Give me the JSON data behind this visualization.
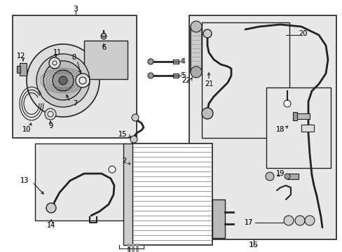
{
  "bg_color": "#ffffff",
  "box_bg": "#e8e8e8",
  "line_color": "#222222",
  "fig_width": 4.89,
  "fig_height": 3.6,
  "dpi": 100
}
